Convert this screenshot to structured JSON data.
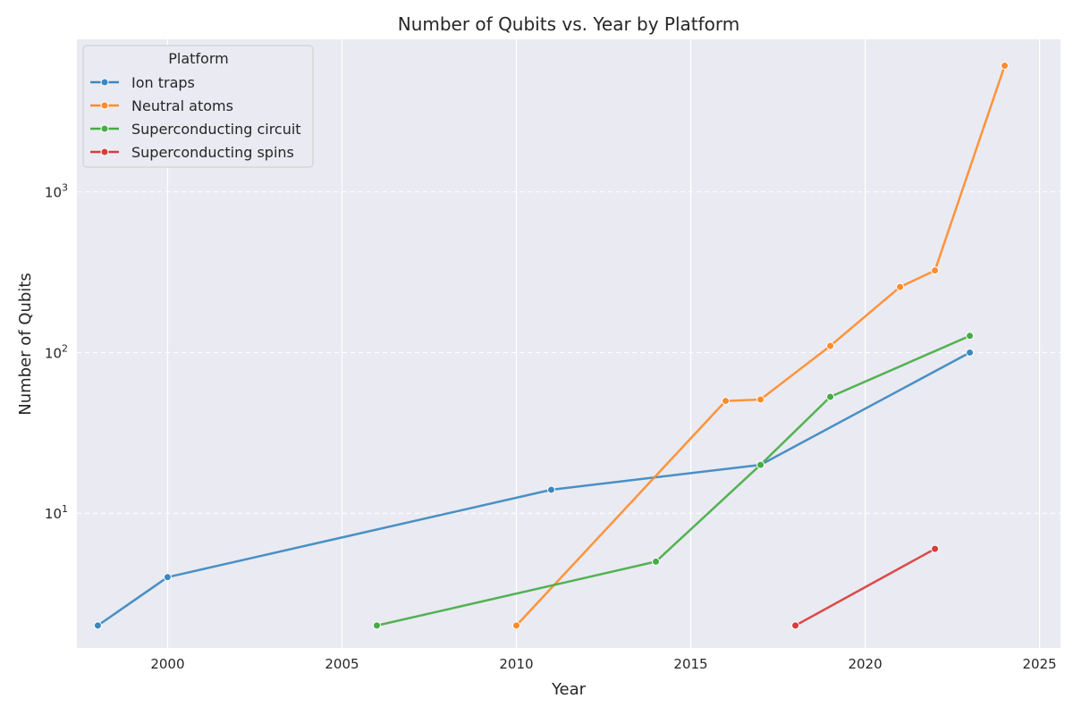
{
  "chart_data": {
    "type": "line",
    "title": "Number of Qubits vs. Year by Platform",
    "xlabel": "Year",
    "ylabel": "Number of Qubits",
    "x_scale": "linear",
    "y_scale": "log",
    "xlim": [
      1997.4,
      2025.6
    ],
    "ylim": [
      1.45,
      8900
    ],
    "x_ticks": [
      2000,
      2005,
      2010,
      2015,
      2020,
      2025
    ],
    "y_ticks": [
      10,
      100,
      1000
    ],
    "y_tick_labels": [
      {
        "base": "10",
        "exp": "1"
      },
      {
        "base": "10",
        "exp": "2"
      },
      {
        "base": "10",
        "exp": "3"
      }
    ],
    "grid": true,
    "legend": {
      "title": "Platform",
      "position": "top-left"
    },
    "series": [
      {
        "name": "Ion traps",
        "color": "#3a88c0",
        "points": [
          [
            1998,
            2
          ],
          [
            2000,
            4
          ],
          [
            2011,
            14
          ],
          [
            2017,
            20
          ],
          [
            2023,
            100
          ]
        ]
      },
      {
        "name": "Neutral atoms",
        "color": "#ff8c2a",
        "points": [
          [
            2010,
            2
          ],
          [
            2016,
            50
          ],
          [
            2017,
            51
          ],
          [
            2019,
            110
          ],
          [
            2021,
            256
          ],
          [
            2022,
            324
          ],
          [
            2024,
            6100
          ]
        ]
      },
      {
        "name": "Superconducting circuit",
        "color": "#44ad44",
        "points": [
          [
            2006,
            2
          ],
          [
            2014,
            5
          ],
          [
            2017,
            20
          ],
          [
            2019,
            53
          ],
          [
            2023,
            127
          ]
        ]
      },
      {
        "name": "Superconducting spins",
        "color": "#d83c3c",
        "points": [
          [
            2018,
            2
          ],
          [
            2022,
            6
          ]
        ]
      }
    ]
  }
}
